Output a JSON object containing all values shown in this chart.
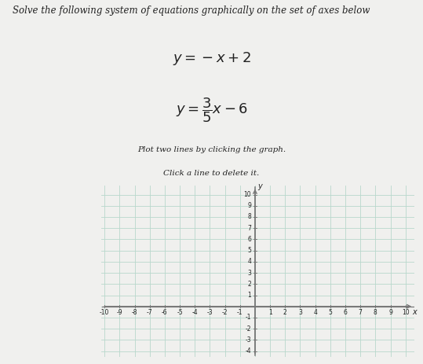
{
  "title_line1": "Solve the following system of equations graphically on the set of axes below",
  "eq1_latex": "$y = -x + 2$",
  "eq2_latex": "$y = \\dfrac{3}{5}x - 6$",
  "instruction1": "Plot two lines by clicking the graph.",
  "instruction2": "Click a line to delete it.",
  "xmin": -10,
  "xmax": 10,
  "ymin": -4,
  "ymax": 10,
  "grid_color": "#b8d8cc",
  "axis_color": "#777777",
  "page_bg": "#f0f0ee",
  "graph_bg": "#e8eeea",
  "font_color": "#222222",
  "text_area_bg": "#f5f5f3"
}
